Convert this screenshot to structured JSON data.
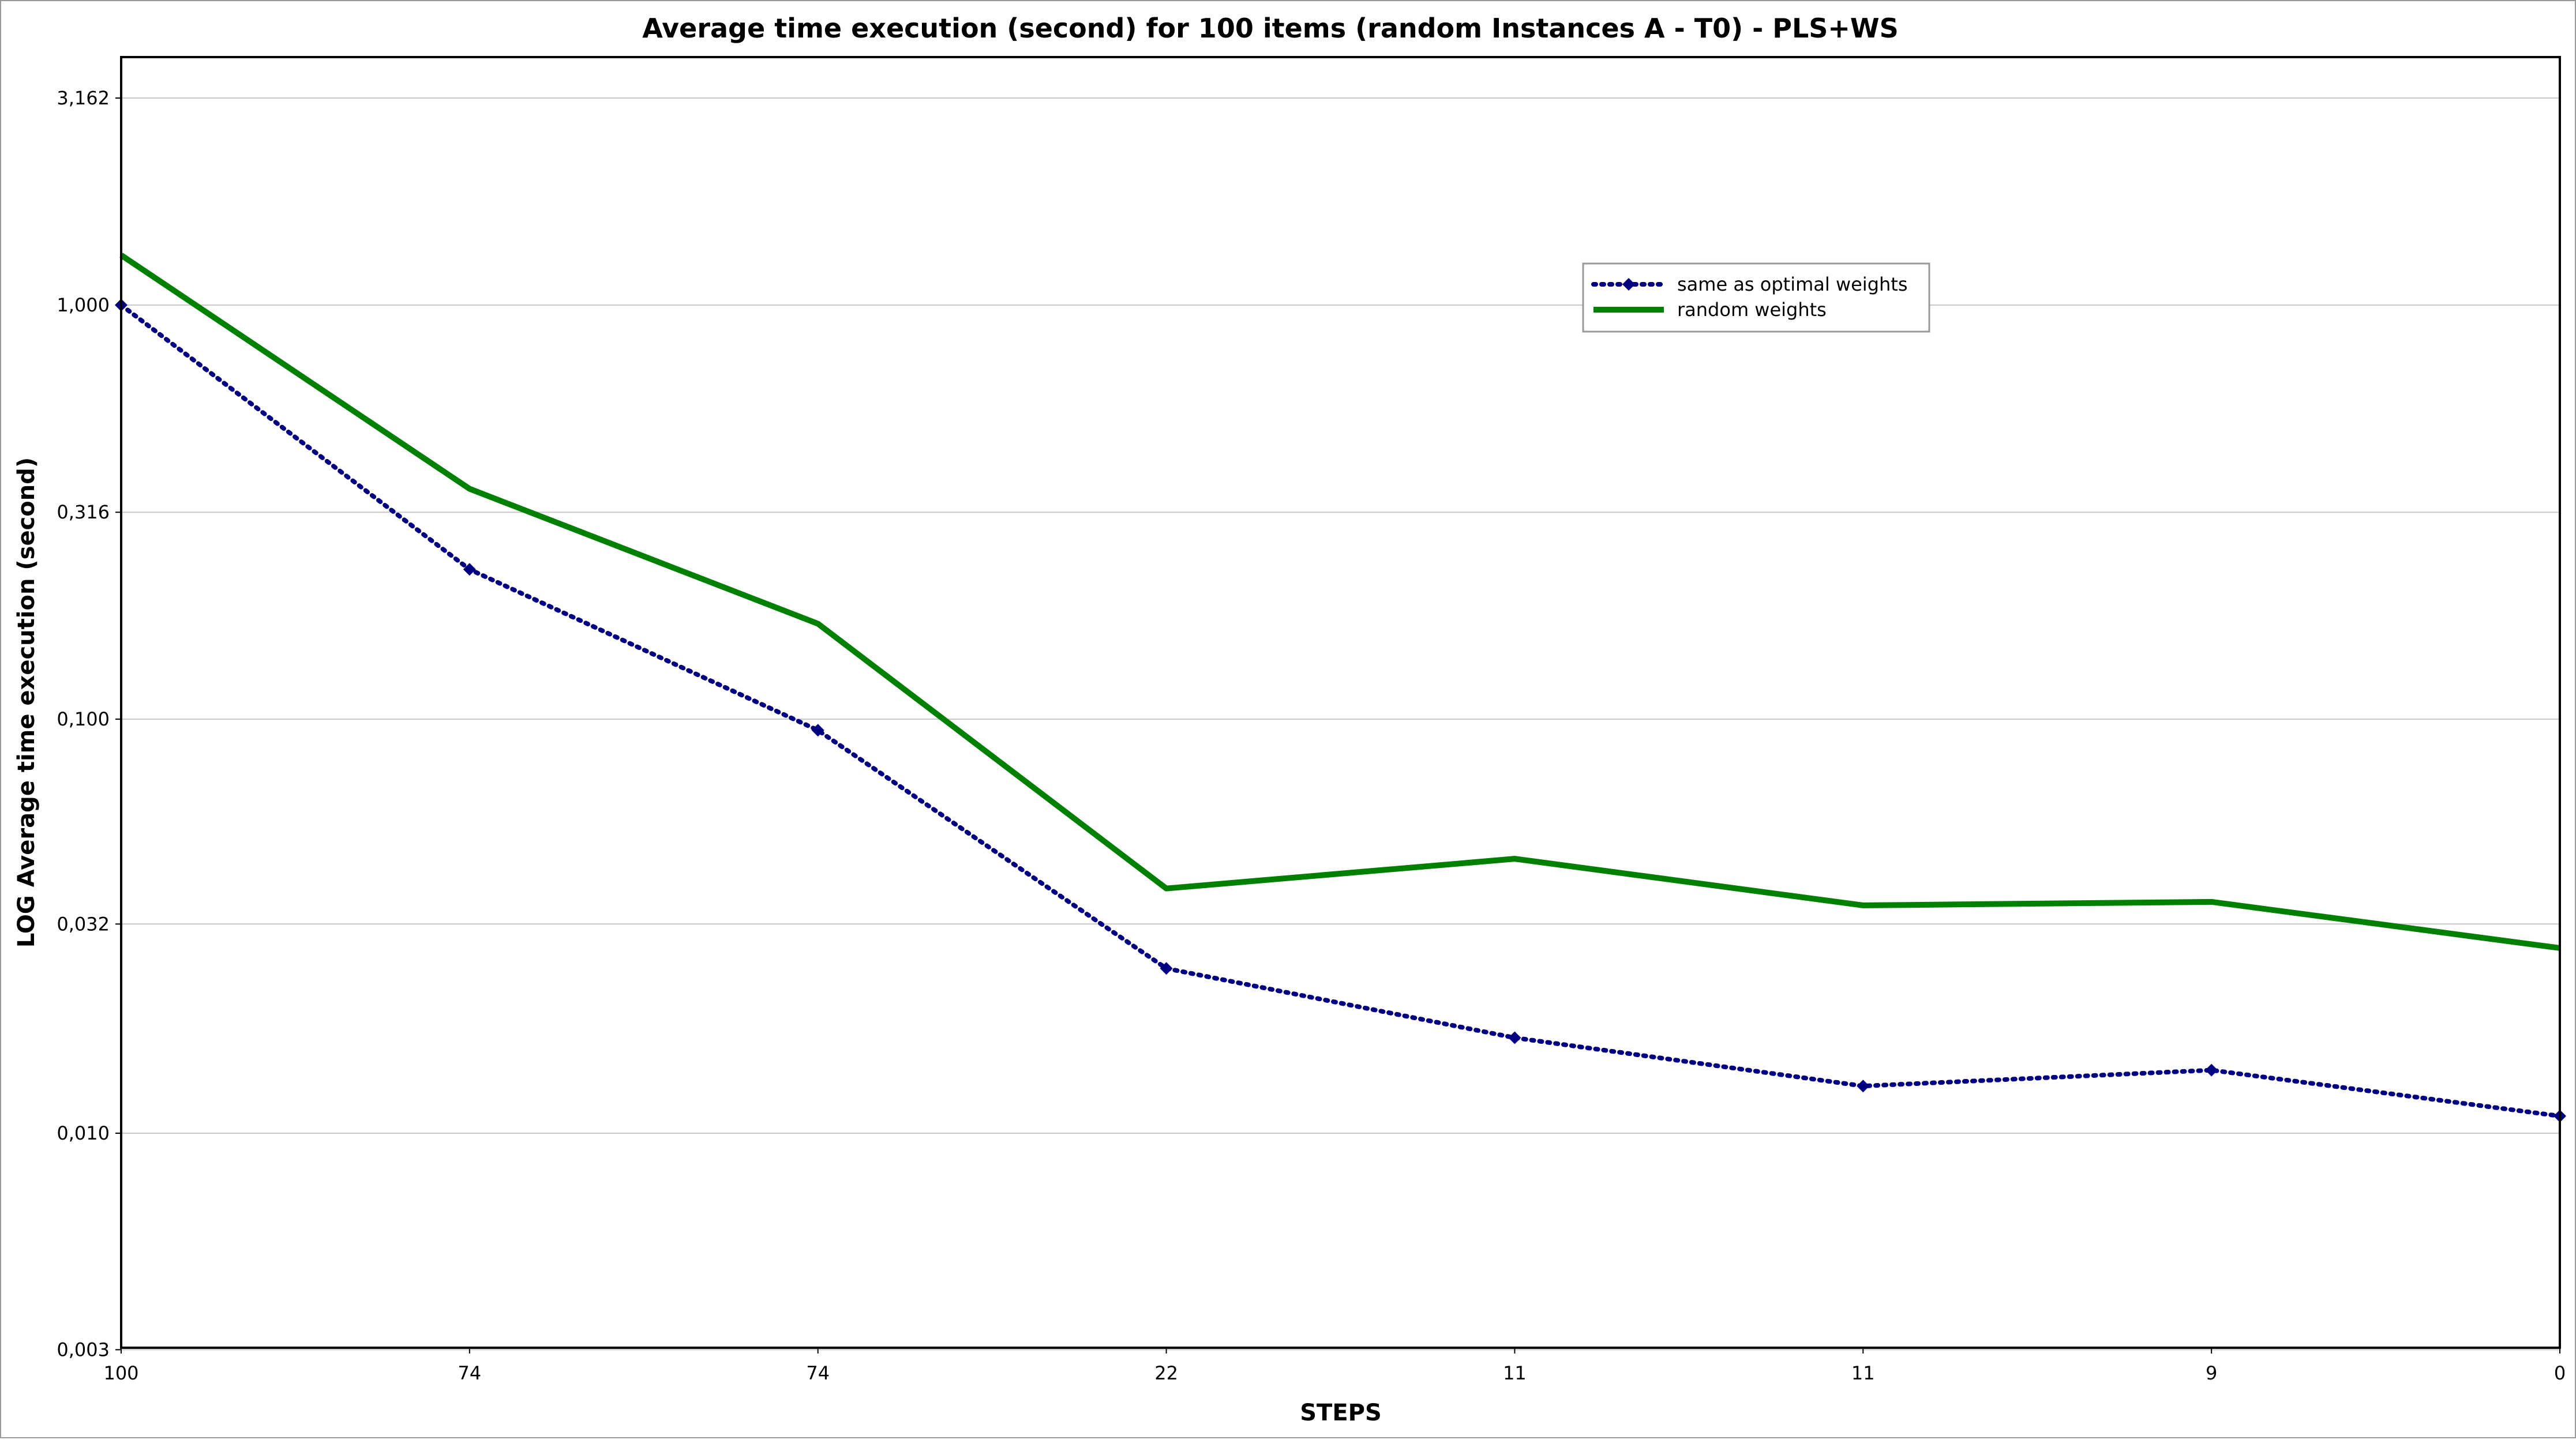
{
  "chart_data": {
    "type": "line",
    "title": "Average time execution (second) for 100 items (random Instances A - T0) - PLS+WS",
    "xlabel": "STEPS",
    "ylabel": "LOG Average time execution (second)",
    "yscale": "log",
    "ylim": [
      0.003,
      4.2
    ],
    "categories": [
      "100",
      "74",
      "74",
      "22",
      "11",
      "11",
      "9",
      "0"
    ],
    "y_ticks": [
      {
        "value": 3.162,
        "label": "3,162"
      },
      {
        "value": 1.0,
        "label": "1,000"
      },
      {
        "value": 0.316,
        "label": "0,316"
      },
      {
        "value": 0.1,
        "label": "0,100"
      },
      {
        "value": 0.032,
        "label": "0,032"
      },
      {
        "value": 0.01,
        "label": "0,010"
      },
      {
        "value": 0.003,
        "label": "0,003"
      }
    ],
    "grid": true,
    "legend_position": "top-right",
    "series": [
      {
        "name": "same as optimal weights",
        "color": "#000080",
        "style": "dotted",
        "marker": "diamond",
        "values": [
          1.0,
          0.23,
          0.094,
          0.025,
          0.017,
          0.013,
          0.0142,
          0.011
        ]
      },
      {
        "name": "random weights",
        "color": "#008000",
        "style": "solid",
        "marker": "none",
        "values": [
          1.32,
          0.36,
          0.17,
          0.039,
          0.046,
          0.0355,
          0.0362,
          0.028
        ]
      }
    ]
  }
}
